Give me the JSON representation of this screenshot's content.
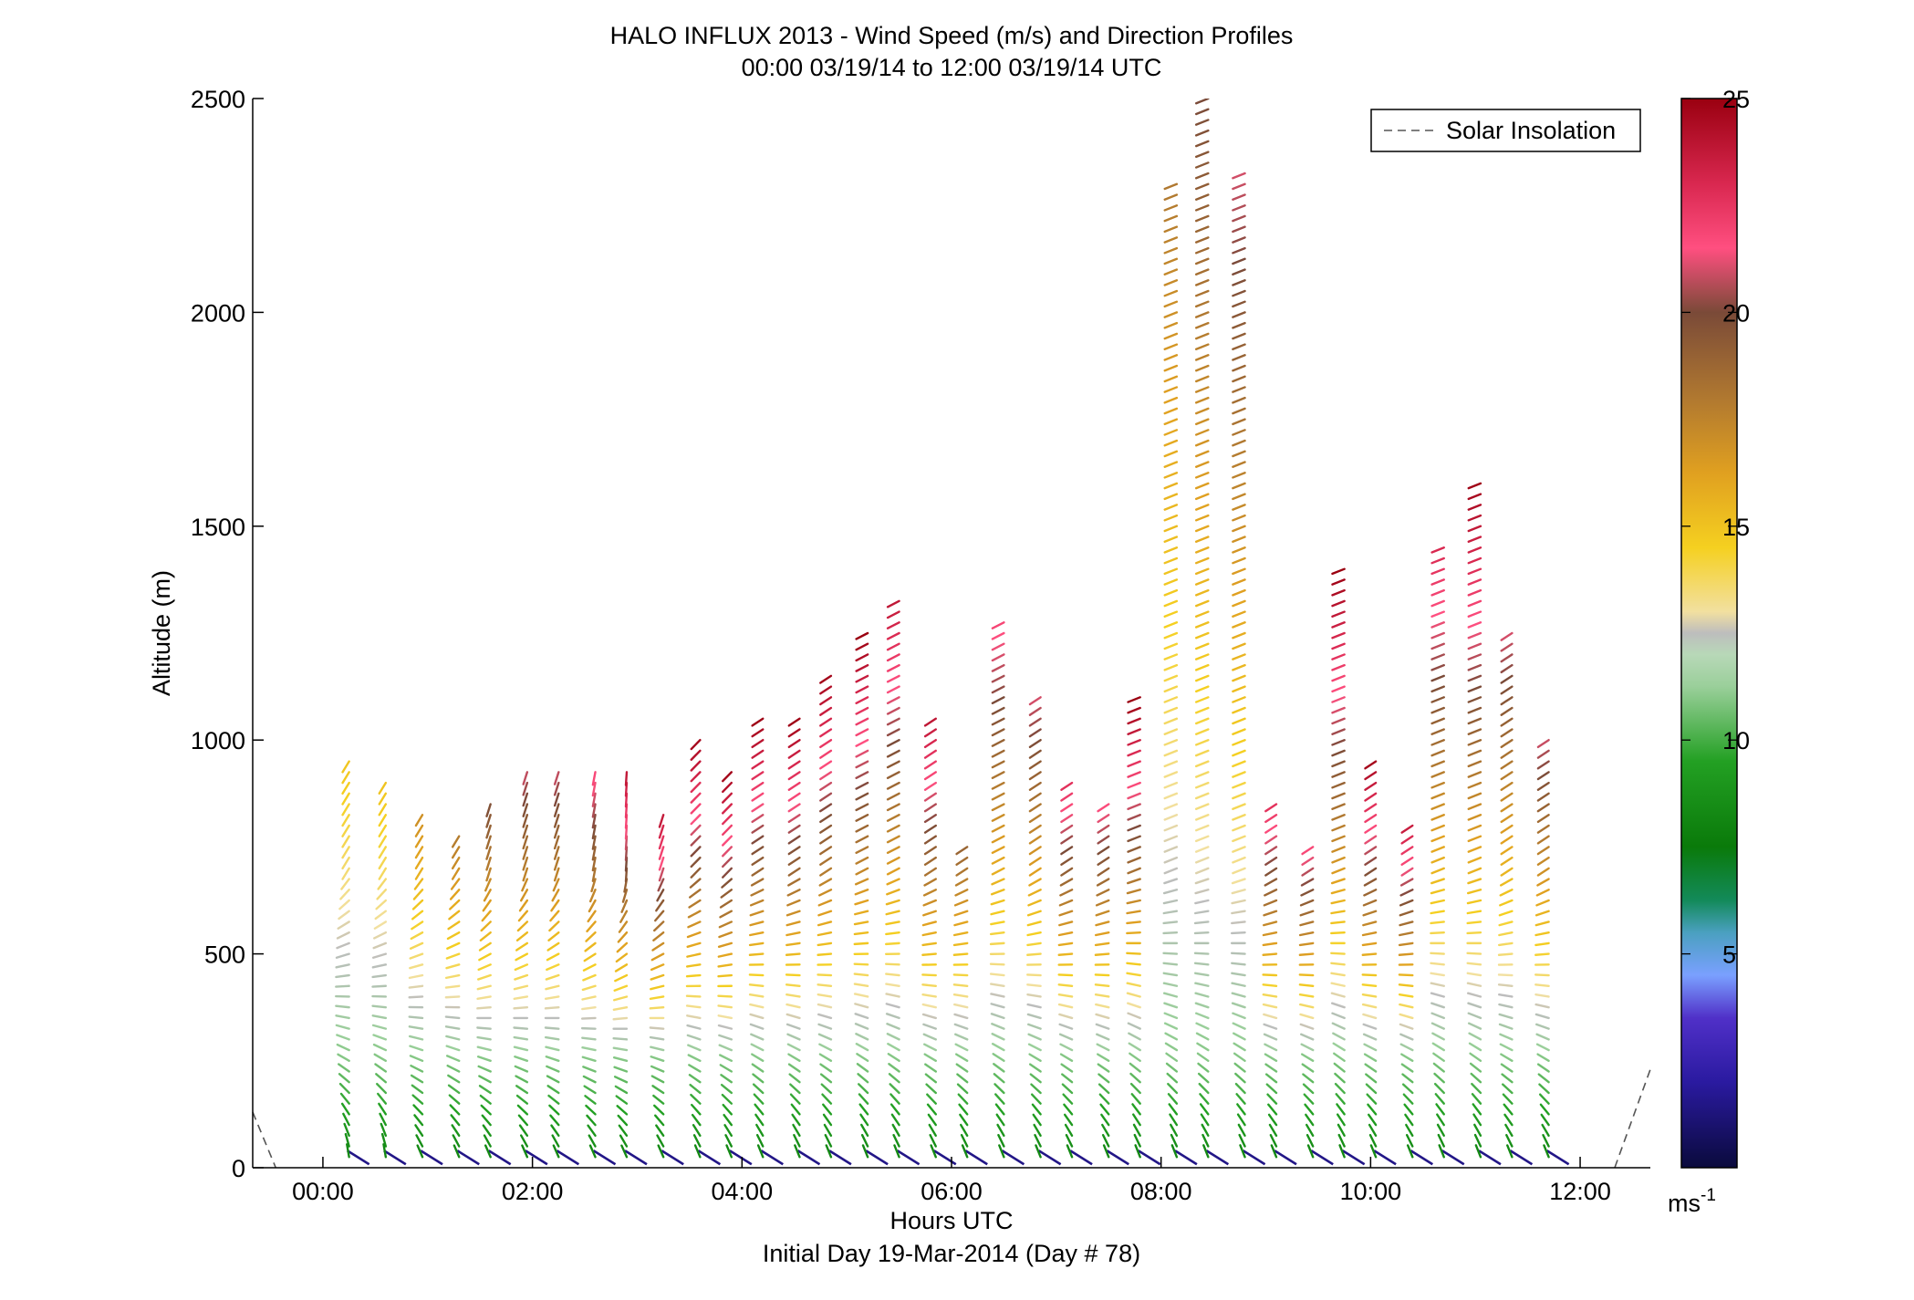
{
  "chart_data": {
    "type": "scatter",
    "title": "HALO INFLUX 2013 - Wind Speed (m/s) and Direction Profiles",
    "subtitle": "00:00 03/19/14 to 12:00 03/19/14  UTC",
    "xlabel": "Hours UTC",
    "xlabel2": "Initial Day 19-Mar-2014 (Day # 78)",
    "ylabel": "Altitude (m)",
    "x_ticks": [
      "00:00",
      "02:00",
      "04:00",
      "06:00",
      "08:00",
      "10:00",
      "12:00"
    ],
    "x_tick_values": [
      0,
      2,
      4,
      6,
      8,
      10,
      12
    ],
    "xlim": [
      -0.67,
      12.67
    ],
    "y_ticks": [
      "0",
      "500",
      "1000",
      "1500",
      "2000",
      "2500"
    ],
    "y_tick_values": [
      0,
      500,
      1000,
      1500,
      2000,
      2500
    ],
    "ylim": [
      0,
      2500
    ],
    "legend": {
      "label": "Solar Insolation",
      "placement": "top-right"
    },
    "colorbar": {
      "ticks": [
        "5",
        "10",
        "15",
        "20",
        "25"
      ],
      "tick_values": [
        5,
        10,
        15,
        20,
        25
      ],
      "range": [
        0,
        25
      ],
      "unit": "ms",
      "unit_exp": "-1"
    },
    "solar_insolation": {
      "x": [
        -0.67,
        -0.45,
        12.33,
        12.67
      ],
      "y": [
        130,
        0,
        0,
        230
      ]
    },
    "profiles": [
      {
        "t": 0.25,
        "top": 970,
        "s_bottom": 8,
        "s_top": 15,
        "dir_bottom": 200,
        "dir_top": 320
      },
      {
        "t": 0.6,
        "top": 900,
        "s_bottom": 8,
        "s_top": 15,
        "dir_bottom": 200,
        "dir_top": 320
      },
      {
        "t": 0.95,
        "top": 830,
        "s_bottom": 8,
        "s_top": 17,
        "dir_bottom": 210,
        "dir_top": 320
      },
      {
        "t": 1.3,
        "top": 790,
        "s_bottom": 8,
        "s_top": 18,
        "dir_bottom": 210,
        "dir_top": 320
      },
      {
        "t": 1.6,
        "top": 870,
        "s_bottom": 8,
        "s_top": 20,
        "dir_bottom": 210,
        "dir_top": 330
      },
      {
        "t": 1.95,
        "top": 940,
        "s_bottom": 8,
        "s_top": 21,
        "dir_bottom": 210,
        "dir_top": 330
      },
      {
        "t": 2.25,
        "top": 940,
        "s_bottom": 8,
        "s_top": 21,
        "dir_bottom": 210,
        "dir_top": 330
      },
      {
        "t": 2.6,
        "top": 940,
        "s_bottom": 8,
        "s_top": 22,
        "dir_bottom": 210,
        "dir_top": 335
      },
      {
        "t": 2.9,
        "top": 940,
        "s_bottom": 8,
        "s_top": 24,
        "dir_bottom": 210,
        "dir_top": 340
      },
      {
        "t": 3.25,
        "top": 840,
        "s_bottom": 8,
        "s_top": 24,
        "dir_bottom": 210,
        "dir_top": 330
      },
      {
        "t": 3.6,
        "top": 1020,
        "s_bottom": 8,
        "s_top": 25,
        "dir_bottom": 210,
        "dir_top": 310
      },
      {
        "t": 3.9,
        "top": 940,
        "s_bottom": 8,
        "s_top": 25,
        "dir_bottom": 210,
        "dir_top": 310
      },
      {
        "t": 4.2,
        "top": 1060,
        "s_bottom": 8,
        "s_top": 25,
        "dir_bottom": 210,
        "dir_top": 300
      },
      {
        "t": 4.55,
        "top": 1060,
        "s_bottom": 8,
        "s_top": 25,
        "dir_bottom": 210,
        "dir_top": 300
      },
      {
        "t": 4.85,
        "top": 1170,
        "s_bottom": 8,
        "s_top": 25,
        "dir_bottom": 210,
        "dir_top": 300
      },
      {
        "t": 5.2,
        "top": 1250,
        "s_bottom": 8,
        "s_top": 25,
        "dir_bottom": 210,
        "dir_top": 295
      },
      {
        "t": 5.5,
        "top": 1340,
        "s_bottom": 8,
        "s_top": 24,
        "dir_bottom": 210,
        "dir_top": 295
      },
      {
        "t": 5.85,
        "top": 1060,
        "s_bottom": 8,
        "s_top": 24,
        "dir_bottom": 210,
        "dir_top": 300
      },
      {
        "t": 6.15,
        "top": 760,
        "s_bottom": 8,
        "s_top": 19,
        "dir_bottom": 210,
        "dir_top": 300
      },
      {
        "t": 6.5,
        "top": 1290,
        "s_bottom": 8,
        "s_top": 22,
        "dir_bottom": 210,
        "dir_top": 295
      },
      {
        "t": 6.85,
        "top": 1100,
        "s_bottom": 8,
        "s_top": 21,
        "dir_bottom": 210,
        "dir_top": 300
      },
      {
        "t": 7.15,
        "top": 920,
        "s_bottom": 8,
        "s_top": 23,
        "dir_bottom": 210,
        "dir_top": 300
      },
      {
        "t": 7.5,
        "top": 870,
        "s_bottom": 8,
        "s_top": 22,
        "dir_bottom": 210,
        "dir_top": 300
      },
      {
        "t": 7.8,
        "top": 1100,
        "s_bottom": 8,
        "s_top": 25,
        "dir_bottom": 210,
        "dir_top": 290
      },
      {
        "t": 8.15,
        "top": 2300,
        "s_bottom": 8,
        "s_top": 18,
        "dir_bottom": 210,
        "dir_top": 290
      },
      {
        "t": 8.45,
        "top": 2500,
        "s_bottom": 8,
        "s_top": 20,
        "dir_bottom": 210,
        "dir_top": 290
      },
      {
        "t": 8.8,
        "top": 2330,
        "s_bottom": 8,
        "s_top": 21,
        "dir_bottom": 210,
        "dir_top": 290
      },
      {
        "t": 9.1,
        "top": 870,
        "s_bottom": 8,
        "s_top": 23,
        "dir_bottom": 210,
        "dir_top": 300
      },
      {
        "t": 9.45,
        "top": 760,
        "s_bottom": 8,
        "s_top": 22,
        "dir_bottom": 210,
        "dir_top": 300
      },
      {
        "t": 9.75,
        "top": 1400,
        "s_bottom": 8,
        "s_top": 25,
        "dir_bottom": 210,
        "dir_top": 290
      },
      {
        "t": 10.05,
        "top": 970,
        "s_bottom": 8,
        "s_top": 25,
        "dir_bottom": 210,
        "dir_top": 300
      },
      {
        "t": 10.4,
        "top": 820,
        "s_bottom": 8,
        "s_top": 24,
        "dir_bottom": 210,
        "dir_top": 300
      },
      {
        "t": 10.7,
        "top": 1450,
        "s_bottom": 8,
        "s_top": 23,
        "dir_bottom": 210,
        "dir_top": 290
      },
      {
        "t": 11.05,
        "top": 1620,
        "s_bottom": 8,
        "s_top": 25,
        "dir_bottom": 210,
        "dir_top": 290
      },
      {
        "t": 11.35,
        "top": 1250,
        "s_bottom": 8,
        "s_top": 21,
        "dir_bottom": 210,
        "dir_top": 300
      },
      {
        "t": 11.7,
        "top": 1010,
        "s_bottom": 8,
        "s_top": 21,
        "dir_bottom": 210,
        "dir_top": 300
      }
    ]
  }
}
